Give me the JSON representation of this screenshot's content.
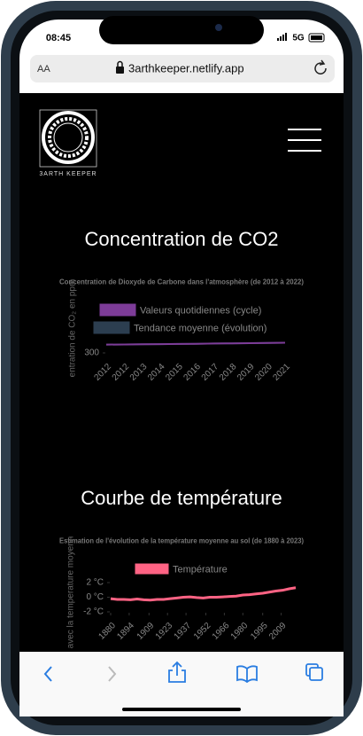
{
  "status": {
    "time": "08:45",
    "network": "5G"
  },
  "browser": {
    "text_size": "AA",
    "url": "3arthkeeper.netlify.app"
  },
  "site": {
    "logo_text": "3ARTH KEEPER"
  },
  "sections": [
    {
      "heading": "Concentration de CO2",
      "chart_data": {
        "type": "line",
        "title": "Concentration de Dioxyde de Carbone dans l'atmosphère (de 2012 à 2022)",
        "y_label": "entration de CO₂ en ppm",
        "categories": [
          "2012",
          "2012",
          "2013",
          "2014",
          "2015",
          "2016",
          "2017",
          "2018",
          "2019",
          "2020",
          "2021"
        ],
        "series": [
          {
            "name": "Valeurs quotidiennes (cycle)",
            "color": "#7d3c98",
            "values": [
              394,
              395,
              397,
              399,
              401,
              403,
              406,
              408,
              410,
              413,
              415
            ]
          },
          {
            "name": "Tendance moyenne (évolution)",
            "color": "#2c3e50",
            "values": [
              394,
              395,
              397,
              399,
              401,
              403,
              406,
              408,
              410,
              413,
              415
            ]
          }
        ],
        "ylim": [
          250,
          450
        ],
        "yticks": [
          300
        ]
      }
    },
    {
      "heading": "Courbe de température",
      "chart_data": {
        "type": "line",
        "title": "Estimation de l'évolution de la température moyenne au sol (de 1880 à 2023)",
        "y_label": "avec la temperature moyenn",
        "x": [
          1880,
          1885,
          1890,
          1895,
          1900,
          1905,
          1910,
          1915,
          1920,
          1925,
          1930,
          1935,
          1940,
          1945,
          1950,
          1955,
          1960,
          1965,
          1970,
          1975,
          1980,
          1985,
          1990,
          1995,
          2000,
          2005,
          2010,
          2015,
          2020
        ],
        "xlim": [
          1880,
          2022
        ],
        "xticks": [
          1880,
          1894,
          1909,
          1923,
          1937,
          1952,
          1966,
          1980,
          1995,
          2009
        ],
        "series": [
          {
            "name": "Température",
            "color": "#ff6384",
            "values": [
              -0.2,
              -0.3,
              -0.3,
              -0.35,
              -0.25,
              -0.35,
              -0.4,
              -0.3,
              -0.3,
              -0.2,
              -0.1,
              0.0,
              0.05,
              -0.05,
              -0.1,
              0.0,
              0.0,
              0.05,
              0.1,
              0.15,
              0.3,
              0.35,
              0.45,
              0.55,
              0.7,
              0.85,
              0.95,
              1.15,
              1.3
            ]
          }
        ],
        "ylim": [
          -2,
          2
        ],
        "yticks": [
          {
            "value": 2,
            "label": "2 °C"
          },
          {
            "value": 0,
            "label": "0 °C"
          },
          {
            "value": -2,
            "label": "-2 °C"
          }
        ]
      }
    }
  ]
}
